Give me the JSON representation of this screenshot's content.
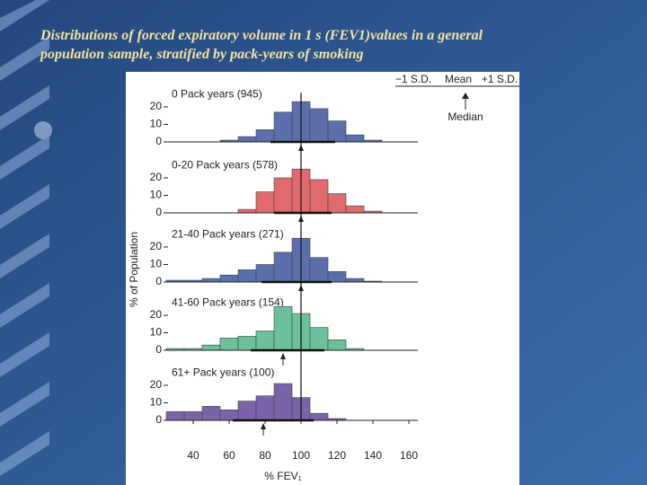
{
  "slide_title": [
    "Distributions of forced expiratory volume in 1 s (FEV1)values in a general",
    "population sample, stratified by pack-years of smoking"
  ],
  "y_label": "% of Population",
  "legend": {
    "sd_low": "−1 S.D.",
    "mean": "Mean",
    "sd_high": "+1 S.D.",
    "median": "Median"
  },
  "reference_line": 100,
  "chart_data": [
    {
      "type": "histogram",
      "title": "0 Pack years (945)",
      "color": "#5b70aa",
      "bins": [
        25,
        35,
        45,
        55,
        65,
        75,
        85,
        95,
        105,
        115,
        125,
        135,
        145,
        155
      ],
      "values": [
        0,
        0,
        0,
        1,
        3,
        7,
        17,
        23,
        19,
        12,
        4,
        1,
        0
      ],
      "median": 100,
      "sd_range": [
        83,
        119
      ],
      "xlim": [
        25,
        165
      ],
      "ylim": [
        0,
        28
      ],
      "yticks": [
        0,
        10,
        20
      ]
    },
    {
      "type": "histogram",
      "title": "0-20 Pack years (578)",
      "color": "#e06a6e",
      "bins": [
        25,
        35,
        45,
        55,
        65,
        75,
        85,
        95,
        105,
        115,
        125,
        135,
        145,
        155
      ],
      "values": [
        0,
        0,
        0,
        0,
        2,
        12,
        20,
        25,
        19,
        11,
        4,
        1,
        0
      ],
      "median": 100,
      "sd_range": [
        85,
        117
      ],
      "xlim": [
        25,
        165
      ],
      "ylim": [
        0,
        28
      ],
      "yticks": [
        0,
        10,
        20
      ]
    },
    {
      "type": "histogram",
      "title": "21-40 Pack years (271)",
      "color": "#5b70aa",
      "bins": [
        25,
        35,
        45,
        55,
        65,
        75,
        85,
        95,
        105,
        115,
        125,
        135,
        145,
        155
      ],
      "values": [
        1,
        1,
        2,
        4,
        7,
        10,
        17,
        25,
        14,
        6,
        2,
        0.5,
        0
      ],
      "median": 100,
      "sd_range": [
        78,
        117
      ],
      "xlim": [
        25,
        165
      ],
      "ylim": [
        0,
        28
      ],
      "yticks": [
        0,
        10,
        20
      ]
    },
    {
      "type": "histogram",
      "title": "41-60 Pack years (154)",
      "color": "#6cc09a",
      "bins": [
        25,
        35,
        45,
        55,
        65,
        75,
        85,
        95,
        105,
        115,
        125,
        135,
        145,
        155
      ],
      "values": [
        1,
        1,
        3,
        7,
        8,
        11,
        25,
        21,
        13,
        6,
        1,
        0,
        0
      ],
      "median": 90,
      "sd_range": [
        72,
        113
      ],
      "xlim": [
        25,
        165
      ],
      "ylim": [
        0,
        28
      ],
      "yticks": [
        0,
        10,
        20
      ]
    },
    {
      "type": "histogram",
      "title": "61+ Pack years (100)",
      "color": "#7a63a8",
      "bins": [
        25,
        35,
        45,
        55,
        65,
        75,
        85,
        95,
        105,
        115,
        125,
        135,
        145,
        155
      ],
      "values": [
        5,
        5,
        8,
        6,
        11,
        14,
        21,
        13,
        4,
        1,
        0,
        0,
        0
      ],
      "median": 79,
      "sd_range": [
        62,
        107
      ],
      "xlim": [
        25,
        165
      ],
      "ylim": [
        0,
        28
      ],
      "yticks": [
        0,
        10,
        20
      ],
      "xticks": [
        40,
        60,
        80,
        100,
        120,
        140,
        160
      ],
      "x_label": "% FEV₁"
    }
  ]
}
